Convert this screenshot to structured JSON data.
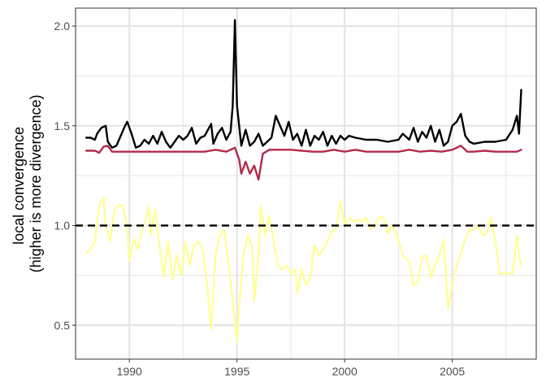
{
  "chart_data": {
    "type": "line",
    "title": "",
    "xlabel": "",
    "ylabel_lines": [
      "local convergence",
      "(higher is more divergence)"
    ],
    "xlim": [
      1987.5,
      2008.9
    ],
    "ylim": [
      0.33,
      2.09
    ],
    "x_ticks": [
      1990,
      1995,
      2000,
      2005
    ],
    "x_tick_labels": [
      "1990",
      "1995",
      "2000",
      "2005"
    ],
    "y_ticks": [
      0.5,
      1.0,
      1.5,
      2.0
    ],
    "y_tick_labels": [
      "0.5",
      "1.0",
      "1.5",
      "2.0"
    ],
    "grid": true,
    "reference_line": {
      "y": 1.0,
      "style": "dashed",
      "color": "#000000"
    },
    "series": [
      {
        "color": "#000000",
        "points": [
          [
            1988.0,
            1.44
          ],
          [
            1988.2,
            1.44
          ],
          [
            1988.4,
            1.43
          ],
          [
            1988.5,
            1.46
          ],
          [
            1988.7,
            1.49
          ],
          [
            1988.9,
            1.5
          ],
          [
            1989.0,
            1.42
          ],
          [
            1989.2,
            1.39
          ],
          [
            1989.4,
            1.4
          ],
          [
            1989.6,
            1.45
          ],
          [
            1989.8,
            1.5
          ],
          [
            1989.9,
            1.52
          ],
          [
            1990.1,
            1.46
          ],
          [
            1990.3,
            1.39
          ],
          [
            1990.5,
            1.4
          ],
          [
            1990.7,
            1.43
          ],
          [
            1990.9,
            1.41
          ],
          [
            1991.1,
            1.45
          ],
          [
            1991.3,
            1.41
          ],
          [
            1991.5,
            1.47
          ],
          [
            1991.7,
            1.42
          ],
          [
            1991.9,
            1.39
          ],
          [
            1992.1,
            1.42
          ],
          [
            1992.3,
            1.45
          ],
          [
            1992.5,
            1.43
          ],
          [
            1992.7,
            1.45
          ],
          [
            1992.9,
            1.49
          ],
          [
            1993.1,
            1.41
          ],
          [
            1993.3,
            1.44
          ],
          [
            1993.5,
            1.45
          ],
          [
            1993.8,
            1.51
          ],
          [
            1993.9,
            1.41
          ],
          [
            1994.1,
            1.46
          ],
          [
            1994.3,
            1.49
          ],
          [
            1994.5,
            1.43
          ],
          [
            1994.7,
            1.47
          ],
          [
            1994.8,
            1.6
          ],
          [
            1994.9,
            2.03
          ],
          [
            1995.0,
            1.6
          ],
          [
            1995.2,
            1.4
          ],
          [
            1995.4,
            1.48
          ],
          [
            1995.6,
            1.4
          ],
          [
            1995.8,
            1.42
          ],
          [
            1996.0,
            1.46
          ],
          [
            1996.2,
            1.4
          ],
          [
            1996.4,
            1.42
          ],
          [
            1996.6,
            1.44
          ],
          [
            1996.8,
            1.55
          ],
          [
            1997.0,
            1.5
          ],
          [
            1997.2,
            1.45
          ],
          [
            1997.4,
            1.52
          ],
          [
            1997.6,
            1.43
          ],
          [
            1997.8,
            1.46
          ],
          [
            1998.0,
            1.4
          ],
          [
            1998.2,
            1.48
          ],
          [
            1998.4,
            1.4
          ],
          [
            1998.6,
            1.45
          ],
          [
            1998.8,
            1.43
          ],
          [
            1999.0,
            1.47
          ],
          [
            1999.2,
            1.4
          ],
          [
            1999.4,
            1.45
          ],
          [
            1999.6,
            1.41
          ],
          [
            1999.8,
            1.45
          ],
          [
            2000.0,
            1.43
          ],
          [
            2000.2,
            1.45
          ],
          [
            2000.5,
            1.44
          ],
          [
            2001.0,
            1.43
          ],
          [
            2001.5,
            1.43
          ],
          [
            2002.0,
            1.42
          ],
          [
            2002.5,
            1.43
          ],
          [
            2002.7,
            1.46
          ],
          [
            2003.0,
            1.43
          ],
          [
            2003.2,
            1.49
          ],
          [
            2003.4,
            1.42
          ],
          [
            2003.6,
            1.47
          ],
          [
            2003.8,
            1.44
          ],
          [
            2004.0,
            1.5
          ],
          [
            2004.2,
            1.42
          ],
          [
            2004.4,
            1.48
          ],
          [
            2004.6,
            1.4
          ],
          [
            2004.8,
            1.42
          ],
          [
            2005.0,
            1.5
          ],
          [
            2005.2,
            1.52
          ],
          [
            2005.4,
            1.56
          ],
          [
            2005.6,
            1.45
          ],
          [
            2005.8,
            1.42
          ],
          [
            2006.0,
            1.41
          ],
          [
            2006.5,
            1.42
          ],
          [
            2007.0,
            1.42
          ],
          [
            2007.5,
            1.43
          ],
          [
            2007.8,
            1.48
          ],
          [
            2008.0,
            1.55
          ],
          [
            2008.1,
            1.46
          ],
          [
            2008.2,
            1.68
          ]
        ]
      },
      {
        "color": "#b22a4c",
        "points": [
          [
            1988.0,
            1.375
          ],
          [
            1988.4,
            1.375
          ],
          [
            1988.6,
            1.365
          ],
          [
            1988.8,
            1.395
          ],
          [
            1989.0,
            1.4
          ],
          [
            1989.2,
            1.37
          ],
          [
            1989.6,
            1.37
          ],
          [
            1990.0,
            1.37
          ],
          [
            1990.5,
            1.37
          ],
          [
            1991.0,
            1.37
          ],
          [
            1991.5,
            1.37
          ],
          [
            1992.0,
            1.37
          ],
          [
            1992.5,
            1.37
          ],
          [
            1993.0,
            1.37
          ],
          [
            1993.5,
            1.37
          ],
          [
            1994.0,
            1.38
          ],
          [
            1994.5,
            1.37
          ],
          [
            1994.9,
            1.39
          ],
          [
            1995.1,
            1.33
          ],
          [
            1995.2,
            1.26
          ],
          [
            1995.4,
            1.32
          ],
          [
            1995.6,
            1.26
          ],
          [
            1995.8,
            1.3
          ],
          [
            1996.0,
            1.23
          ],
          [
            1996.2,
            1.36
          ],
          [
            1996.5,
            1.38
          ],
          [
            1997.0,
            1.38
          ],
          [
            1997.5,
            1.38
          ],
          [
            1998.0,
            1.375
          ],
          [
            1998.5,
            1.37
          ],
          [
            1999.0,
            1.37
          ],
          [
            1999.5,
            1.38
          ],
          [
            2000.0,
            1.37
          ],
          [
            2000.5,
            1.38
          ],
          [
            2001.0,
            1.37
          ],
          [
            2001.5,
            1.37
          ],
          [
            2002.0,
            1.37
          ],
          [
            2002.5,
            1.37
          ],
          [
            2003.0,
            1.38
          ],
          [
            2003.5,
            1.37
          ],
          [
            2004.0,
            1.375
          ],
          [
            2004.5,
            1.37
          ],
          [
            2005.0,
            1.38
          ],
          [
            2005.4,
            1.4
          ],
          [
            2005.7,
            1.37
          ],
          [
            2006.0,
            1.37
          ],
          [
            2006.5,
            1.375
          ],
          [
            2007.0,
            1.37
          ],
          [
            2007.5,
            1.37
          ],
          [
            2008.0,
            1.37
          ],
          [
            2008.2,
            1.38
          ]
        ]
      },
      {
        "color": "#ffff99",
        "points": [
          [
            1988.0,
            0.86
          ],
          [
            1988.2,
            0.88
          ],
          [
            1988.4,
            0.92
          ],
          [
            1988.6,
            1.1
          ],
          [
            1988.8,
            1.14
          ],
          [
            1988.9,
            1.0
          ],
          [
            1989.1,
            0.92
          ],
          [
            1989.3,
            1.08
          ],
          [
            1989.5,
            1.1
          ],
          [
            1989.7,
            1.1
          ],
          [
            1989.9,
            1.0
          ],
          [
            1990.0,
            0.82
          ],
          [
            1990.2,
            0.93
          ],
          [
            1990.4,
            0.88
          ],
          [
            1990.6,
            0.98
          ],
          [
            1990.8,
            1.05
          ],
          [
            1990.9,
            1.1
          ],
          [
            1991.0,
            0.95
          ],
          [
            1991.2,
            1.08
          ],
          [
            1991.4,
            0.9
          ],
          [
            1991.6,
            0.74
          ],
          [
            1991.8,
            0.92
          ],
          [
            1992.0,
            0.73
          ],
          [
            1992.2,
            0.85
          ],
          [
            1992.4,
            0.75
          ],
          [
            1992.6,
            0.92
          ],
          [
            1992.8,
            0.8
          ],
          [
            1993.0,
            0.9
          ],
          [
            1993.2,
            0.92
          ],
          [
            1993.4,
            0.88
          ],
          [
            1993.6,
            0.72
          ],
          [
            1993.8,
            0.48
          ],
          [
            1994.0,
            0.85
          ],
          [
            1994.2,
            0.95
          ],
          [
            1994.4,
            0.98
          ],
          [
            1994.6,
            0.82
          ],
          [
            1994.8,
            0.62
          ],
          [
            1995.0,
            0.42
          ],
          [
            1995.1,
            0.6
          ],
          [
            1995.3,
            0.85
          ],
          [
            1995.5,
            0.95
          ],
          [
            1995.7,
            0.9
          ],
          [
            1995.8,
            0.62
          ],
          [
            1996.0,
            0.85
          ],
          [
            1996.1,
            1.1
          ],
          [
            1996.3,
            0.95
          ],
          [
            1996.5,
            1.05
          ],
          [
            1996.7,
            0.92
          ],
          [
            1996.9,
            0.8
          ],
          [
            1997.1,
            0.78
          ],
          [
            1997.3,
            0.8
          ],
          [
            1997.5,
            0.76
          ],
          [
            1997.7,
            0.78
          ],
          [
            1997.8,
            0.66
          ],
          [
            1998.0,
            0.78
          ],
          [
            1998.2,
            0.7
          ],
          [
            1998.4,
            0.74
          ],
          [
            1998.6,
            0.9
          ],
          [
            1998.8,
            0.85
          ],
          [
            1999.0,
            0.88
          ],
          [
            1999.2,
            0.92
          ],
          [
            1999.4,
            0.97
          ],
          [
            1999.6,
            0.98
          ],
          [
            1999.8,
            1.12
          ],
          [
            2000.0,
            1.0
          ],
          [
            2000.2,
            1.04
          ],
          [
            2000.4,
            1.02
          ],
          [
            2000.6,
            1.03
          ],
          [
            2000.8,
            1.02
          ],
          [
            2001.0,
            1.04
          ],
          [
            2001.2,
            0.98
          ],
          [
            2001.4,
            1.0
          ],
          [
            2001.6,
            1.04
          ],
          [
            2001.8,
            1.04
          ],
          [
            2002.0,
            0.96
          ],
          [
            2002.2,
            1.0
          ],
          [
            2002.4,
            0.96
          ],
          [
            2002.7,
            0.85
          ],
          [
            2003.0,
            0.82
          ],
          [
            2003.2,
            0.7
          ],
          [
            2003.4,
            0.72
          ],
          [
            2003.6,
            0.84
          ],
          [
            2003.8,
            0.85
          ],
          [
            2004.0,
            0.74
          ],
          [
            2004.2,
            0.8
          ],
          [
            2004.4,
            0.85
          ],
          [
            2004.6,
            0.93
          ],
          [
            2004.8,
            0.58
          ],
          [
            2005.0,
            0.7
          ],
          [
            2005.2,
            0.8
          ],
          [
            2005.4,
            0.86
          ],
          [
            2005.6,
            0.93
          ],
          [
            2005.8,
            0.98
          ],
          [
            2006.0,
            0.98
          ],
          [
            2006.2,
            1.0
          ],
          [
            2006.4,
            0.95
          ],
          [
            2006.6,
            0.96
          ],
          [
            2006.8,
            1.04
          ],
          [
            2007.0,
            0.92
          ],
          [
            2007.2,
            0.76
          ],
          [
            2007.5,
            0.76
          ],
          [
            2007.8,
            0.76
          ],
          [
            2008.0,
            0.95
          ],
          [
            2008.1,
            0.85
          ],
          [
            2008.2,
            0.8
          ]
        ]
      }
    ]
  }
}
